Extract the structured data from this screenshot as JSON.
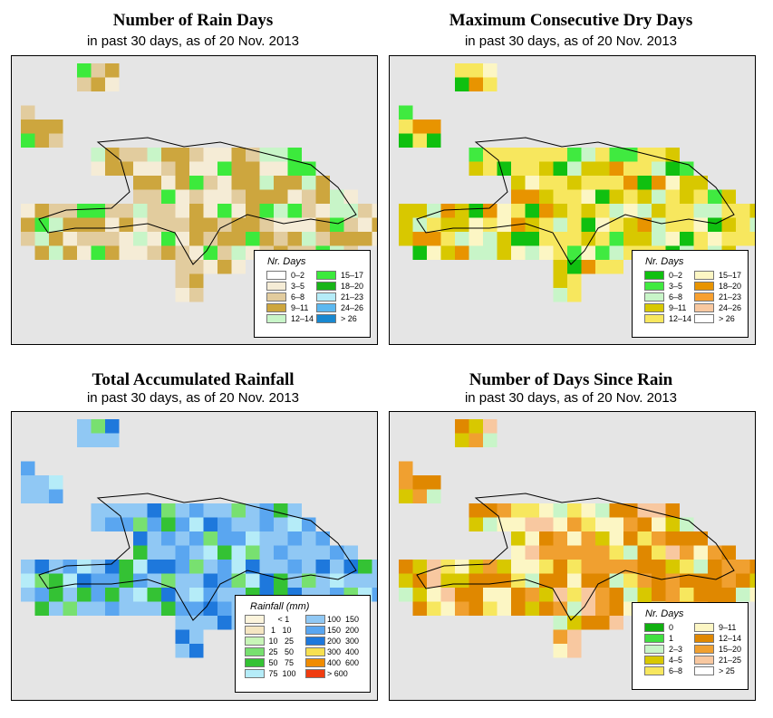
{
  "panels": [
    {
      "id": "rain-days",
      "title": "Number of Rain Days",
      "subtitle": "in past 30 days, as of  20 Nov. 2013",
      "legend": {
        "title": "Nr. Days",
        "items": [
          {
            "label": "0–2",
            "color": "#ffffff"
          },
          {
            "label": "3–5",
            "color": "#f5ecd6"
          },
          {
            "label": "6–8",
            "color": "#e2cc9e"
          },
          {
            "label": "9–11",
            "color": "#cda63e"
          },
          {
            "label": "12–14",
            "color": "#c8f5c8"
          },
          {
            "label": "15–17",
            "color": "#3cea3c"
          },
          {
            "label": "18–20",
            "color": "#18b418"
          },
          {
            "label": "21–23",
            "color": "#b5ecf8"
          },
          {
            "label": "24–26",
            "color": "#5cb8f0"
          },
          {
            "label": "> 26",
            "color": "#1888d0"
          }
        ]
      }
    },
    {
      "id": "max-dry-days",
      "title": "Maximum Consecutive Dry Days",
      "subtitle": "in past 30 days, as of  20 Nov. 2013",
      "legend": {
        "title": "Nr. Days",
        "items": [
          {
            "label": "0–2",
            "color": "#10c010"
          },
          {
            "label": "3–5",
            "color": "#40ea40"
          },
          {
            "label": "6–8",
            "color": "#c8f5c8"
          },
          {
            "label": "9–11",
            "color": "#d8c800"
          },
          {
            "label": "12–14",
            "color": "#f7e75e"
          },
          {
            "label": "15–17",
            "color": "#fcf6c4"
          },
          {
            "label": "18–20",
            "color": "#e89400"
          },
          {
            "label": "21–23",
            "color": "#f7a030"
          },
          {
            "label": "24–26",
            "color": "#f8c8a0"
          },
          {
            "label": "> 26",
            "color": "#ffffff"
          }
        ]
      }
    },
    {
      "id": "total-rainfall",
      "title": "Total Accumulated Rainfall",
      "subtitle": "in past 30 days, as of  20 Nov. 2013",
      "legend": {
        "title": "Rainfall (mm)",
        "items": [
          {
            "label": "     < 1",
            "color": "#fcf4dc"
          },
          {
            "label": "  1   10",
            "color": "#f5e6c2"
          },
          {
            "label": " 10   25",
            "color": "#c8f5b8"
          },
          {
            "label": " 25   50",
            "color": "#78e070"
          },
          {
            "label": " 50   75",
            "color": "#34c234"
          },
          {
            "label": " 75  100",
            "color": "#b5ecf8"
          },
          {
            "label": "100  150",
            "color": "#90c8f4"
          },
          {
            "label": "150  200",
            "color": "#5aa6f0"
          },
          {
            "label": "200  300",
            "color": "#1e78dc"
          },
          {
            "label": "300  400",
            "color": "#f7e050"
          },
          {
            "label": "400  600",
            "color": "#f08c00"
          },
          {
            "label": "> 600",
            "color": "#f03c10"
          }
        ]
      }
    },
    {
      "id": "days-since-rain",
      "title": "Number of Days Since Rain",
      "subtitle": "in past 30 days, as of  20 Nov. 2013",
      "legend": {
        "title": "Nr. Days",
        "items": [
          {
            "label": "0",
            "color": "#10b010"
          },
          {
            "label": "1",
            "color": "#40e040"
          },
          {
            "label": "2–3",
            "color": "#c8f5c8"
          },
          {
            "label": "4–5",
            "color": "#d8c800"
          },
          {
            "label": "6–8",
            "color": "#f7e75e"
          },
          {
            "label": "9–11",
            "color": "#fcf6c4"
          },
          {
            "label": "12–14",
            "color": "#e08800"
          },
          {
            "label": "15–20",
            "color": "#f0a030"
          },
          {
            "label": "21–25",
            "color": "#f8c8a0"
          },
          {
            "label": "> 25",
            "color": "#ffffff"
          }
        ]
      }
    }
  ]
}
